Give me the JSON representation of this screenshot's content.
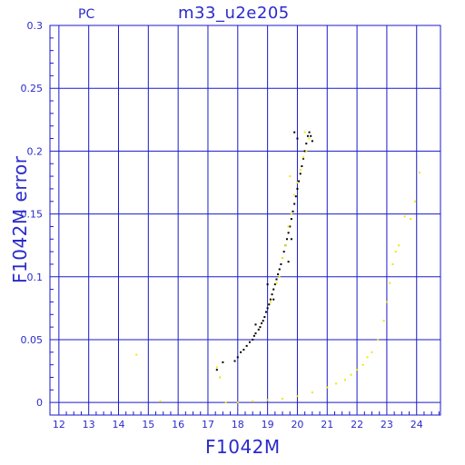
{
  "chart_data": {
    "type": "scatter",
    "title": "m33_u2e205",
    "subtitle": "PC",
    "xlabel": "F1042M",
    "ylabel": "F1042M error",
    "xlim": [
      11.7,
      24.8
    ],
    "ylim": [
      -0.01,
      0.3
    ],
    "x_ticks": [
      12,
      13,
      14,
      15,
      16,
      17,
      18,
      19,
      20,
      21,
      22,
      23,
      24
    ],
    "x_tick_labels": [
      "12",
      "13",
      "14",
      "15",
      "16",
      "17",
      "18",
      "19",
      "20",
      "21",
      "22",
      "23",
      "24"
    ],
    "y_ticks": [
      0,
      0.05,
      0.1,
      0.15,
      0.2,
      0.25,
      0.3
    ],
    "y_tick_labels": [
      "0",
      "0.05",
      "0.1",
      "0.15",
      "0.2",
      "0.25",
      "0.3"
    ],
    "grid": true,
    "colors": {
      "axis": "#2a2acc",
      "grid": "#1a1acc",
      "series_black": "#000000",
      "series_yellow": "#f2e600"
    },
    "series": [
      {
        "color": "#000000",
        "points": [
          [
            17.3,
            0.026
          ],
          [
            17.5,
            0.032
          ],
          [
            17.9,
            0.033
          ],
          [
            18.0,
            0.036
          ],
          [
            18.1,
            0.04
          ],
          [
            18.2,
            0.042
          ],
          [
            18.3,
            0.045
          ],
          [
            18.4,
            0.048
          ],
          [
            18.5,
            0.05
          ],
          [
            18.55,
            0.053
          ],
          [
            18.6,
            0.055
          ],
          [
            18.7,
            0.058
          ],
          [
            18.75,
            0.06
          ],
          [
            18.8,
            0.063
          ],
          [
            18.85,
            0.065
          ],
          [
            18.9,
            0.068
          ],
          [
            18.95,
            0.072
          ],
          [
            19.0,
            0.075
          ],
          [
            19.05,
            0.078
          ],
          [
            19.1,
            0.082
          ],
          [
            19.15,
            0.086
          ],
          [
            19.2,
            0.09
          ],
          [
            19.25,
            0.094
          ],
          [
            19.3,
            0.098
          ],
          [
            19.35,
            0.102
          ],
          [
            19.4,
            0.106
          ],
          [
            19.45,
            0.11
          ],
          [
            19.5,
            0.115
          ],
          [
            19.55,
            0.12
          ],
          [
            19.6,
            0.125
          ],
          [
            19.65,
            0.13
          ],
          [
            19.7,
            0.135
          ],
          [
            19.75,
            0.14
          ],
          [
            19.8,
            0.146
          ],
          [
            19.85,
            0.152
          ],
          [
            19.9,
            0.158
          ],
          [
            19.95,
            0.164
          ],
          [
            20.0,
            0.17
          ],
          [
            20.05,
            0.176
          ],
          [
            20.1,
            0.182
          ],
          [
            20.15,
            0.188
          ],
          [
            20.2,
            0.194
          ],
          [
            20.25,
            0.2
          ],
          [
            20.3,
            0.206
          ],
          [
            20.35,
            0.212
          ],
          [
            20.4,
            0.215
          ],
          [
            20.45,
            0.212
          ],
          [
            20.5,
            0.208
          ],
          [
            19.9,
            0.215
          ],
          [
            20.0,
            0.21
          ],
          [
            19.7,
            0.112
          ],
          [
            19.2,
            0.082
          ],
          [
            18.6,
            0.062
          ],
          [
            19.0,
            0.094
          ],
          [
            19.8,
            0.13
          ]
        ]
      },
      {
        "color": "#f2e600",
        "points": [
          [
            14.6,
            0.038
          ],
          [
            15.4,
            0.001
          ],
          [
            17.3,
            0.028
          ],
          [
            17.4,
            0.02
          ],
          [
            17.6,
            0.0
          ],
          [
            18.0,
            0.0
          ],
          [
            18.5,
            0.001
          ],
          [
            19.0,
            0.002
          ],
          [
            19.5,
            0.003
          ],
          [
            20.0,
            0.005
          ],
          [
            20.5,
            0.008
          ],
          [
            21.0,
            0.012
          ],
          [
            21.3,
            0.015
          ],
          [
            21.6,
            0.018
          ],
          [
            21.8,
            0.022
          ],
          [
            22.0,
            0.026
          ],
          [
            22.2,
            0.03
          ],
          [
            22.35,
            0.036
          ],
          [
            22.5,
            0.04
          ],
          [
            22.7,
            0.05
          ],
          [
            22.9,
            0.065
          ],
          [
            23.0,
            0.08
          ],
          [
            23.1,
            0.095
          ],
          [
            23.2,
            0.11
          ],
          [
            23.3,
            0.12
          ],
          [
            23.4,
            0.125
          ],
          [
            23.6,
            0.148
          ],
          [
            23.8,
            0.146
          ],
          [
            23.95,
            0.16
          ],
          [
            24.1,
            0.183
          ],
          [
            19.4,
            0.1
          ],
          [
            19.6,
            0.125
          ],
          [
            19.8,
            0.15
          ],
          [
            20.0,
            0.175
          ],
          [
            20.2,
            0.195
          ],
          [
            20.4,
            0.21
          ],
          [
            20.3,
            0.2
          ],
          [
            20.1,
            0.185
          ],
          [
            19.9,
            0.165
          ],
          [
            19.7,
            0.14
          ],
          [
            19.5,
            0.115
          ],
          [
            19.3,
            0.095
          ],
          [
            19.1,
            0.08
          ],
          [
            20.25,
            0.215
          ],
          [
            19.75,
            0.18
          ]
        ]
      }
    ]
  }
}
